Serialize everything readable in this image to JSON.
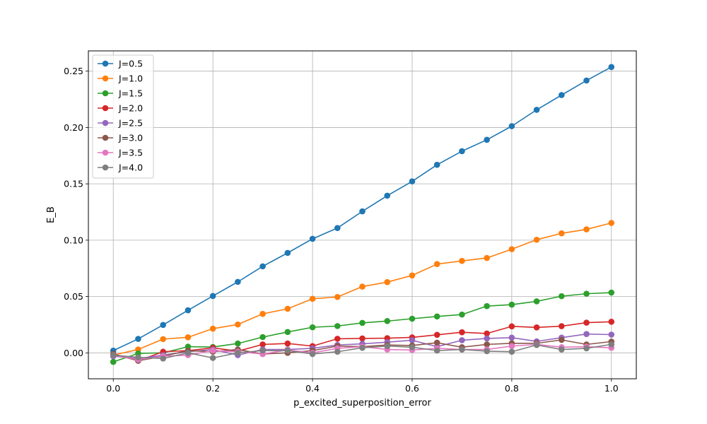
{
  "chart_data": {
    "type": "line",
    "title": "",
    "xlabel": "p_excited_superposition_error",
    "ylabel": "E_B",
    "xlim": [
      -0.05,
      1.05
    ],
    "ylim": [
      -0.023,
      0.268
    ],
    "x_ticks": [
      "0.0",
      "0.2",
      "0.4",
      "0.6",
      "0.8",
      "1.0"
    ],
    "y_ticks": [
      "0.00",
      "0.05",
      "0.10",
      "0.15",
      "0.20",
      "0.25"
    ],
    "grid": true,
    "legend_position": "top-left",
    "x": [
      0.0,
      0.05,
      0.1,
      0.15,
      0.2,
      0.25,
      0.3,
      0.35,
      0.4,
      0.45,
      0.5,
      0.55,
      0.6,
      0.65,
      0.7,
      0.75,
      0.8,
      0.85,
      0.9,
      0.95,
      1.0
    ],
    "series": [
      {
        "name": "J=0.5",
        "color": "#1f77b4",
        "values": [
          0.002,
          0.0124,
          0.0248,
          0.0378,
          0.0505,
          0.063,
          0.0768,
          0.0887,
          0.1012,
          0.1108,
          0.1256,
          0.1395,
          0.1522,
          0.1669,
          0.179,
          0.1891,
          0.2012,
          0.2157,
          0.2288,
          0.2417,
          0.2537
        ]
      },
      {
        "name": "J=1.0",
        "color": "#ff7f0e",
        "values": [
          -0.002,
          0.003,
          0.0122,
          0.0138,
          0.0215,
          0.0252,
          0.0346,
          0.0391,
          0.048,
          0.0496,
          0.0588,
          0.0628,
          0.0687,
          0.0788,
          0.0816,
          0.0842,
          0.092,
          0.1004,
          0.1061,
          0.1096,
          0.1153
        ]
      },
      {
        "name": "J=1.5",
        "color": "#2ca02c",
        "values": [
          -0.008,
          -0.0005,
          0.0,
          0.0055,
          0.0052,
          0.0083,
          0.014,
          0.0185,
          0.0227,
          0.0238,
          0.0266,
          0.0282,
          0.0303,
          0.0323,
          0.034,
          0.0415,
          0.0428,
          0.0457,
          0.0503,
          0.0525,
          0.0535
        ]
      },
      {
        "name": "J=2.0",
        "color": "#d62728",
        "values": [
          -0.001,
          -0.007,
          0.001,
          0.002,
          0.0045,
          0.0015,
          0.0075,
          0.0083,
          0.006,
          0.0125,
          0.0128,
          0.013,
          0.0137,
          0.016,
          0.0183,
          0.0172,
          0.0235,
          0.0226,
          0.0237,
          0.0268,
          0.0276
        ]
      },
      {
        "name": "J=2.5",
        "color": "#9467bd",
        "values": [
          -0.003,
          -0.005,
          -0.002,
          0.001,
          0.003,
          -0.002,
          0.003,
          0.003,
          0.004,
          0.007,
          0.008,
          0.0095,
          0.0112,
          0.0055,
          0.0112,
          0.0128,
          0.0135,
          0.0102,
          0.0135,
          0.0167,
          0.0162
        ]
      },
      {
        "name": "J=3.0",
        "color": "#8c564b",
        "values": [
          -0.001,
          -0.007,
          -0.003,
          0.002,
          0.001,
          0.003,
          -0.001,
          0.0,
          0.002,
          0.006,
          0.0055,
          0.007,
          0.0065,
          0.009,
          0.005,
          0.0075,
          0.0085,
          0.0085,
          0.0115,
          0.0075,
          0.01
        ]
      },
      {
        "name": "J=3.5",
        "color": "#e377c2",
        "values": [
          -0.002,
          -0.006,
          -0.003,
          -0.002,
          0.002,
          0.001,
          -0.001,
          0.0025,
          0.0,
          0.004,
          0.0055,
          0.003,
          0.0025,
          0.004,
          0.003,
          0.003,
          0.006,
          0.0075,
          0.005,
          0.0055,
          0.0045
        ]
      },
      {
        "name": "J=4.0",
        "color": "#7f7f7f",
        "values": [
          -0.002,
          -0.004,
          -0.005,
          0.0,
          -0.0045,
          0.0,
          0.002,
          0.002,
          -0.001,
          0.001,
          0.0045,
          0.006,
          0.005,
          0.002,
          0.003,
          0.0015,
          0.001,
          0.007,
          0.003,
          0.004,
          0.0075
        ]
      }
    ]
  }
}
